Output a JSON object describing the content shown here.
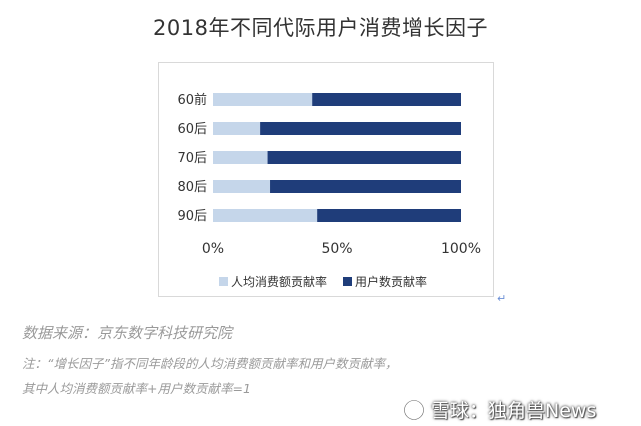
{
  "title": "2018年不同代际用户消费增长因子",
  "source": "数据来源：京东数字科技研究院",
  "note_line1": "注：“增长因子”指不同年龄段的人均消费额贡献率和用户数贡献率，",
  "note_line2": "其中人均消费额贡献率+用户数贡献率=1",
  "watermark": {
    "text": "雪球：独角兽News",
    "icon": "snowball-logo-icon"
  },
  "chart_data": {
    "type": "bar",
    "orientation": "horizontal",
    "stacked": true,
    "percent": true,
    "title": "2018年不同代际用户消费增长因子",
    "categories": [
      "60前",
      "60后",
      "70后",
      "80后",
      "90后"
    ],
    "series": [
      {
        "name": "人均消费额贡献率",
        "color": "#c5d6ea",
        "values": [
          0.4,
          0.19,
          0.22,
          0.23,
          0.42
        ]
      },
      {
        "name": "用户数贡献率",
        "color": "#1f3d7a",
        "values": [
          0.6,
          0.81,
          0.78,
          0.77,
          0.58
        ]
      }
    ],
    "xticks": [
      "0%",
      "50%",
      "100%"
    ],
    "xlim": [
      0,
      1
    ],
    "grid": false,
    "legend_position": "bottom"
  }
}
